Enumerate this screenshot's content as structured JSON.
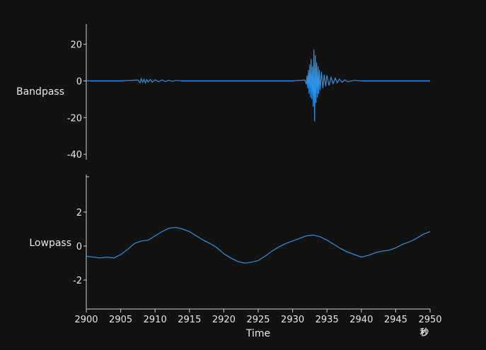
{
  "chart_data": [
    {
      "type": "line",
      "ylabel": "Bandpass",
      "ylim": [
        -43,
        31
      ],
      "yticks": [
        20,
        0,
        -20,
        -40
      ],
      "xlim": [
        2900,
        2950
      ],
      "color": "#2f8fe0",
      "series": [
        {
          "x": [
            2900,
            2905,
            2907.5,
            2907.8,
            2908,
            2908.2,
            2908.4,
            2908.6,
            2908.8,
            2909,
            2909.3,
            2909.6,
            2910,
            2910.5,
            2911,
            2911.5,
            2912,
            2912.5,
            2913,
            2914,
            2916,
            2920,
            2925,
            2930,
            2931.8,
            2932.0,
            2932.1,
            2932.2,
            2932.3,
            2932.4,
            2932.5,
            2932.6,
            2932.7,
            2932.8,
            2932.9,
            2933.0,
            2933.1,
            2933.2,
            2933.3,
            2933.4,
            2933.5,
            2933.6,
            2933.7,
            2933.8,
            2933.9,
            2934.0,
            2934.2,
            2934.4,
            2934.6,
            2934.8,
            2935.0,
            2935.3,
            2935.6,
            2935.9,
            2936.2,
            2936.5,
            2936.8,
            2937.2,
            2937.6,
            2938,
            2939,
            2940,
            2942,
            2945,
            2948,
            2949,
            2950
          ],
          "y": [
            0,
            0,
            0.5,
            -1,
            1.2,
            -0.8,
            0.9,
            -1.1,
            0.7,
            -0.6,
            0.8,
            -0.7,
            0.6,
            -0.5,
            0.5,
            -0.4,
            0.4,
            -0.3,
            0.3,
            0,
            0,
            0,
            0,
            0,
            0.5,
            -2,
            3,
            -4,
            6,
            -7,
            9,
            -9,
            12,
            -10,
            8,
            -14,
            17,
            -22,
            14,
            -12,
            10,
            -9,
            8,
            -7,
            6,
            -5,
            5,
            -4,
            3.5,
            -3,
            3,
            -2.5,
            2,
            -1.5,
            1.5,
            -1,
            1,
            -0.8,
            0.6,
            -0.4,
            0.3,
            0,
            0,
            0,
            0,
            0,
            0
          ]
        }
      ]
    },
    {
      "type": "line",
      "ylabel": "Lowpass",
      "ylim": [
        -3.7,
        4.2
      ],
      "yticks": [
        2,
        0,
        -2
      ],
      "xlim": [
        2900,
        2950
      ],
      "xticks": [
        2900,
        2905,
        2910,
        2915,
        2920,
        2925,
        2930,
        2935,
        2940,
        2945,
        2950
      ],
      "xlabel": "Time",
      "xunit": "秒",
      "color": "#2f8fe0",
      "series": [
        {
          "x": [
            2900,
            2901,
            2902,
            2903,
            2904,
            2905,
            2906,
            2907,
            2908,
            2909,
            2910,
            2911,
            2912,
            2913,
            2914,
            2915,
            2916,
            2917,
            2918,
            2919,
            2920,
            2921,
            2922,
            2923,
            2924,
            2925,
            2926,
            2927,
            2928,
            2929,
            2930,
            2931,
            2932,
            2933,
            2934,
            2935,
            2936,
            2937,
            2938,
            2939,
            2940,
            2941,
            2942,
            2943,
            2944,
            2945,
            2946,
            2947,
            2948,
            2949,
            2950
          ],
          "y": [
            -0.6,
            -0.65,
            -0.7,
            -0.65,
            -0.7,
            -0.5,
            -0.2,
            0.15,
            0.3,
            0.35,
            0.6,
            0.85,
            1.05,
            1.1,
            1.0,
            0.85,
            0.6,
            0.35,
            0.15,
            -0.1,
            -0.45,
            -0.7,
            -0.9,
            -1.0,
            -0.95,
            -0.85,
            -0.6,
            -0.3,
            -0.05,
            0.15,
            0.3,
            0.45,
            0.6,
            0.65,
            0.55,
            0.35,
            0.1,
            -0.15,
            -0.35,
            -0.5,
            -0.65,
            -0.55,
            -0.4,
            -0.3,
            -0.25,
            -0.1,
            0.1,
            0.25,
            0.45,
            0.7,
            0.85
          ]
        }
      ]
    }
  ]
}
